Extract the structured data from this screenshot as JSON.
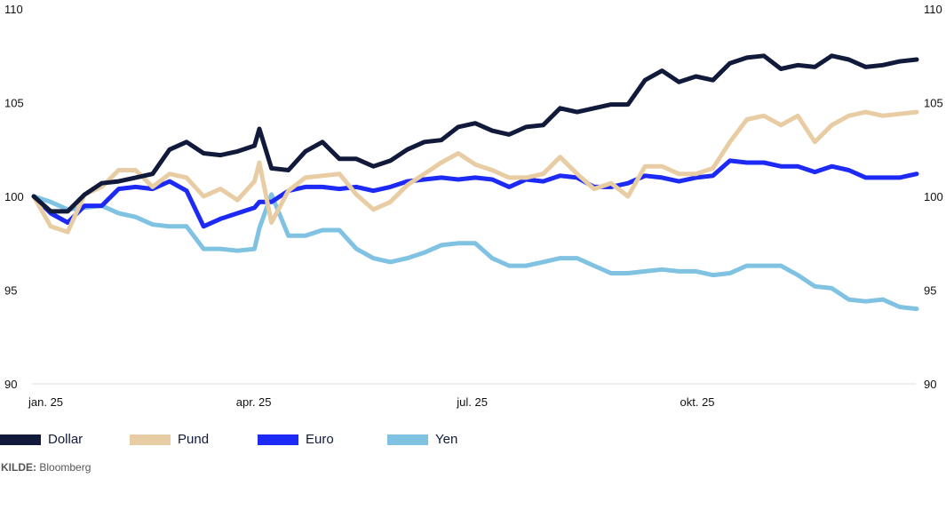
{
  "chart_data": {
    "type": "line",
    "title": "",
    "xlabel": "",
    "ylabel": "",
    "ylim": [
      90,
      110
    ],
    "xlim": [
      "2025-01-01",
      "2025-12-31"
    ],
    "grid": false,
    "y_ticks": [
      "110",
      "105",
      "100",
      "95",
      "90"
    ],
    "y_tick_values": [
      110,
      105,
      100,
      95,
      90
    ],
    "y_axis_sides": "both",
    "x_ticks": [
      {
        "label": "jan. 25",
        "date": "2025-01-01"
      },
      {
        "label": "apr. 25",
        "date": "2025-04-01"
      },
      {
        "label": "jul. 25",
        "date": "2025-07-01"
      },
      {
        "label": "okt. 25",
        "date": "2025-10-01"
      }
    ],
    "legend_position": "bottom",
    "x": [
      "2025-01-01",
      "2025-01-08",
      "2025-01-15",
      "2025-01-22",
      "2025-01-29",
      "2025-02-05",
      "2025-02-12",
      "2025-02-19",
      "2025-02-26",
      "2025-03-05",
      "2025-03-12",
      "2025-03-19",
      "2025-03-26",
      "2025-04-02",
      "2025-04-04",
      "2025-04-09",
      "2025-04-16",
      "2025-04-23",
      "2025-04-30",
      "2025-05-07",
      "2025-05-14",
      "2025-05-21",
      "2025-05-28",
      "2025-06-04",
      "2025-06-11",
      "2025-06-18",
      "2025-06-25",
      "2025-07-02",
      "2025-07-09",
      "2025-07-16",
      "2025-07-23",
      "2025-07-30",
      "2025-08-06",
      "2025-08-13",
      "2025-08-20",
      "2025-08-27",
      "2025-09-03",
      "2025-09-10",
      "2025-09-17",
      "2025-09-24",
      "2025-10-01",
      "2025-10-08",
      "2025-10-15",
      "2025-10-22",
      "2025-10-29",
      "2025-11-05",
      "2025-11-12",
      "2025-11-19",
      "2025-11-26",
      "2025-12-03",
      "2025-12-10",
      "2025-12-17",
      "2025-12-24",
      "2025-12-31"
    ],
    "series": [
      {
        "name": "Dollar",
        "color": "#111a3a",
        "values": [
          100.0,
          99.2,
          99.2,
          100.1,
          100.7,
          100.8,
          101.0,
          101.2,
          102.5,
          102.9,
          102.3,
          102.2,
          102.4,
          102.7,
          103.6,
          101.5,
          101.4,
          102.4,
          102.9,
          102.0,
          102.0,
          101.6,
          101.9,
          102.5,
          102.9,
          103.0,
          103.7,
          103.9,
          103.5,
          103.3,
          103.7,
          103.8,
          104.7,
          104.5,
          104.7,
          104.9,
          104.9,
          106.2,
          106.7,
          106.1,
          106.4,
          106.2,
          107.1,
          107.4,
          107.5,
          106.8,
          107.0,
          106.9,
          107.5,
          107.3,
          106.9,
          107.0,
          107.2,
          107.3
        ]
      },
      {
        "name": "Pund",
        "color": "#e8cda4",
        "values": [
          100.0,
          98.4,
          98.1,
          100.1,
          100.5,
          101.4,
          101.4,
          100.5,
          101.2,
          101.0,
          100.0,
          100.4,
          99.8,
          100.8,
          101.8,
          98.6,
          100.3,
          101.0,
          101.1,
          101.2,
          100.1,
          99.3,
          99.7,
          100.6,
          101.2,
          101.8,
          102.3,
          101.7,
          101.4,
          101.0,
          101.0,
          101.2,
          102.1,
          101.2,
          100.4,
          100.7,
          100.0,
          101.6,
          101.6,
          101.2,
          101.2,
          101.5,
          102.9,
          104.1,
          104.3,
          103.8,
          104.3,
          102.9,
          103.8,
          104.3,
          104.5,
          104.3,
          104.4,
          104.5
        ]
      },
      {
        "name": "Euro",
        "color": "#1d2af5",
        "values": [
          100.0,
          99.1,
          98.6,
          99.5,
          99.5,
          100.4,
          100.5,
          100.4,
          100.8,
          100.3,
          98.4,
          98.8,
          99.1,
          99.4,
          99.7,
          99.7,
          100.3,
          100.5,
          100.5,
          100.4,
          100.5,
          100.3,
          100.5,
          100.8,
          100.9,
          101.0,
          100.9,
          101.0,
          100.9,
          100.5,
          100.9,
          100.8,
          101.1,
          101.0,
          100.5,
          100.5,
          100.7,
          101.1,
          101.0,
          100.8,
          101.0,
          101.1,
          101.9,
          101.8,
          101.8,
          101.6,
          101.6,
          101.3,
          101.6,
          101.4,
          101.0,
          101.0,
          101.0,
          101.2
        ]
      },
      {
        "name": "Yen",
        "color": "#7fc2e2",
        "values": [
          100.0,
          99.7,
          99.3,
          99.4,
          99.5,
          99.1,
          98.9,
          98.5,
          98.4,
          98.4,
          97.2,
          97.2,
          97.1,
          97.2,
          98.3,
          100.1,
          97.9,
          97.9,
          98.2,
          98.2,
          97.2,
          96.7,
          96.5,
          96.7,
          97.0,
          97.4,
          97.5,
          97.5,
          96.7,
          96.3,
          96.3,
          96.5,
          96.7,
          96.7,
          96.3,
          95.9,
          95.9,
          96.0,
          96.1,
          96.0,
          96.0,
          95.8,
          95.9,
          96.3,
          96.3,
          96.3,
          95.8,
          95.2,
          95.1,
          94.5,
          94.4,
          94.5,
          94.1,
          94.0
        ]
      }
    ]
  },
  "legend": [
    {
      "label": "Dollar",
      "color": "#111a3a"
    },
    {
      "label": "Pund",
      "color": "#e8cda4"
    },
    {
      "label": "Euro",
      "color": "#1d2af5"
    },
    {
      "label": "Yen",
      "color": "#7fc2e2"
    }
  ],
  "source": {
    "label": "KILDE:",
    "value": "Bloomberg"
  }
}
